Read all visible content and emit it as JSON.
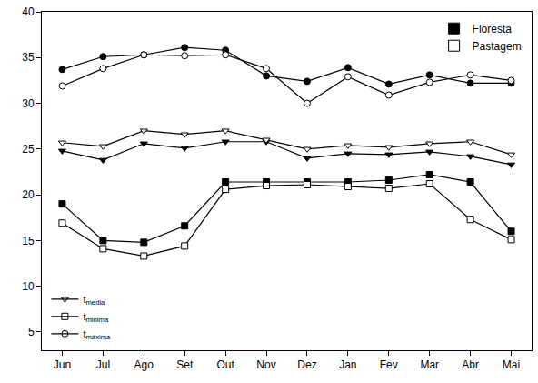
{
  "chart_data": {
    "type": "line",
    "categories": [
      "Jun",
      "Jul",
      "Ago",
      "Set",
      "Out",
      "Nov",
      "Dez",
      "Jan",
      "Fev",
      "Mar",
      "Abr",
      "Mai"
    ],
    "ylim": [
      3,
      40
    ],
    "yticks": [
      5,
      10,
      15,
      20,
      25,
      30,
      35,
      40
    ],
    "grid": false,
    "sites": {
      "legend": "top right",
      "items": [
        {
          "name": "Floresta",
          "color": "#000000"
        },
        {
          "name": "Pastagem",
          "color": "#ffffff"
        }
      ]
    },
    "variables": {
      "legend": "bottom left",
      "items": [
        {
          "symbol": "t",
          "subscript": "media",
          "marker": "triangle-down"
        },
        {
          "symbol": "t",
          "subscript": "minima",
          "marker": "square"
        },
        {
          "symbol": "t",
          "subscript": "máxima",
          "marker": "circle"
        }
      ]
    },
    "series": [
      {
        "site": "Floresta",
        "variable": "máxima",
        "values": [
          33.7,
          35.1,
          35.3,
          36.1,
          35.8,
          33.0,
          32.4,
          33.9,
          32.1,
          33.1,
          32.2,
          32.2
        ]
      },
      {
        "site": "Pastagem",
        "variable": "máxima",
        "values": [
          31.9,
          33.8,
          35.3,
          35.2,
          35.3,
          33.8,
          30.0,
          32.9,
          30.9,
          32.3,
          33.1,
          32.5
        ]
      },
      {
        "site": "Floresta",
        "variable": "media",
        "values": [
          24.8,
          23.8,
          25.6,
          25.1,
          25.8,
          25.8,
          24.0,
          24.5,
          24.4,
          24.7,
          24.2,
          23.3
        ]
      },
      {
        "site": "Pastagem",
        "variable": "media",
        "values": [
          25.7,
          25.3,
          27.0,
          26.6,
          27.0,
          26.0,
          25.0,
          25.4,
          25.2,
          25.6,
          25.8,
          24.4
        ]
      },
      {
        "site": "Floresta",
        "variable": "minima",
        "values": [
          19.0,
          15.0,
          14.8,
          16.6,
          21.4,
          21.4,
          21.4,
          21.4,
          21.6,
          22.2,
          21.4,
          16.0
        ]
      },
      {
        "site": "Pastagem",
        "variable": "minima",
        "values": [
          16.9,
          14.1,
          13.3,
          14.4,
          20.6,
          21.0,
          21.1,
          20.9,
          20.7,
          21.2,
          17.3,
          15.1
        ]
      }
    ]
  }
}
